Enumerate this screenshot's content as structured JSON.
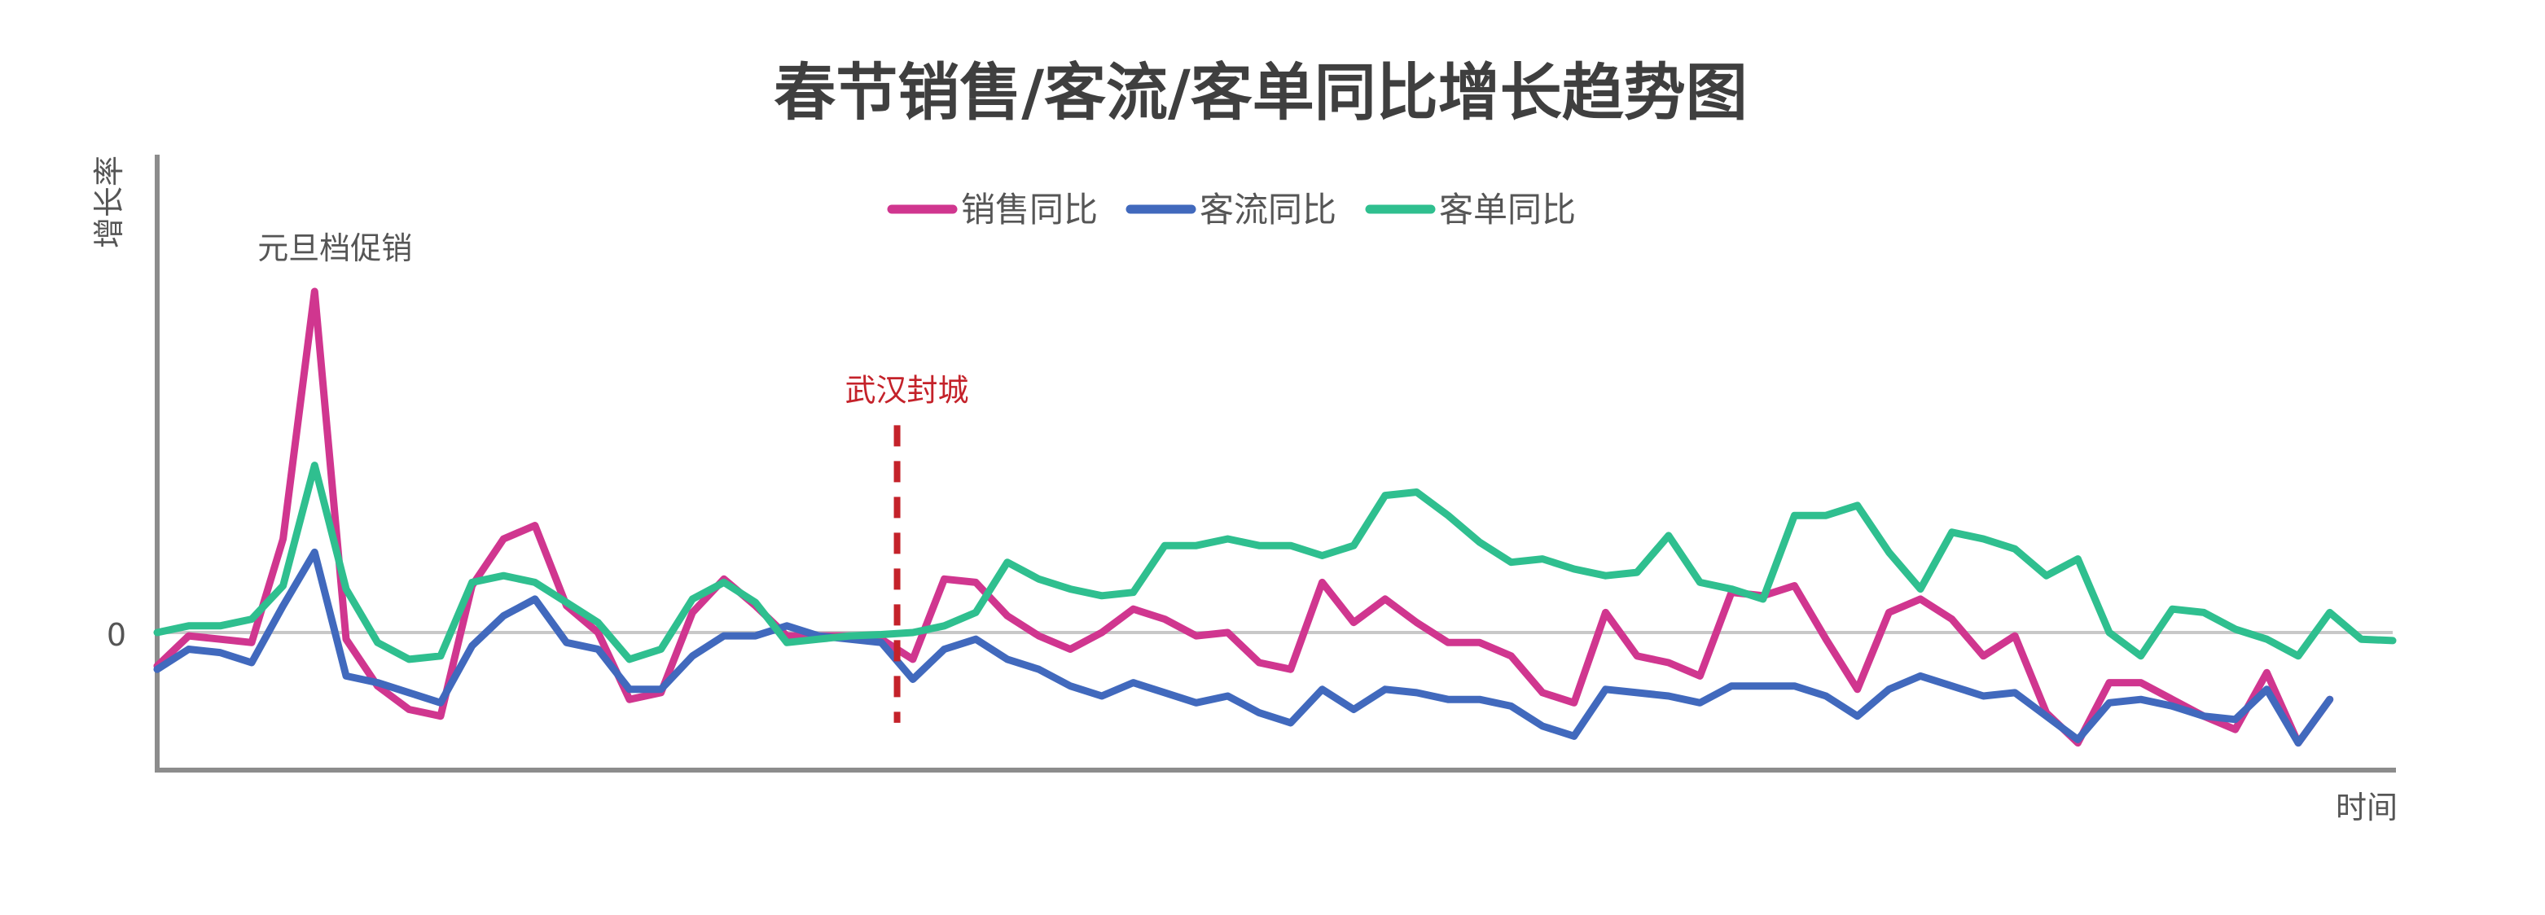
{
  "chart_data": {
    "type": "line",
    "title": "春节销售/客流/客单同比增长趋势图",
    "xlabel": "时间",
    "ylabel": "增长率",
    "y_tick_labels": [
      "0"
    ],
    "ylim": [
      -0.2,
      0.7
    ],
    "x_count": 72,
    "legend": {
      "placement": "top-center"
    },
    "grid": false,
    "zero_line": true,
    "series": [
      {
        "name": "销售同比",
        "color": "#d0368f",
        "values": [
          -0.05,
          -0.005,
          -0.01,
          -0.015,
          0.14,
          0.51,
          -0.01,
          -0.08,
          -0.115,
          -0.125,
          0.07,
          0.14,
          0.16,
          0.04,
          -0.0,
          -0.1,
          -0.09,
          0.03,
          0.08,
          0.04,
          -0.005,
          -0.005,
          -0.005,
          -0.01,
          -0.04,
          0.08,
          0.075,
          0.025,
          -0.005,
          -0.025,
          0.0,
          0.035,
          0.02,
          -0.005,
          0.0,
          -0.045,
          -0.055,
          0.075,
          0.015,
          0.05,
          0.015,
          -0.015,
          -0.015,
          -0.035,
          -0.09,
          -0.105,
          0.03,
          -0.035,
          -0.045,
          -0.065,
          0.06,
          0.055,
          0.07,
          -0.01,
          -0.085,
          0.03,
          0.05,
          0.02,
          -0.035,
          -0.005,
          -0.12,
          -0.165,
          -0.075,
          -0.075,
          -0.1,
          -0.125,
          -0.145,
          -0.06,
          -0.165,
          -0.1
        ],
        "lw": 9
      },
      {
        "name": "客流同比",
        "color": "#4169bd",
        "values": [
          -0.055,
          -0.025,
          -0.03,
          -0.045,
          0.04,
          0.12,
          -0.065,
          -0.075,
          -0.09,
          -0.105,
          -0.02,
          0.025,
          0.05,
          -0.015,
          -0.025,
          -0.085,
          -0.085,
          -0.035,
          -0.005,
          -0.005,
          0.01,
          -0.005,
          -0.01,
          -0.015,
          -0.07,
          -0.025,
          -0.01,
          -0.04,
          -0.055,
          -0.08,
          -0.095,
          -0.075,
          -0.09,
          -0.105,
          -0.095,
          -0.12,
          -0.135,
          -0.085,
          -0.115,
          -0.085,
          -0.09,
          -0.1,
          -0.1,
          -0.11,
          -0.14,
          -0.155,
          -0.085,
          -0.09,
          -0.095,
          -0.105,
          -0.08,
          -0.08,
          -0.08,
          -0.095,
          -0.125,
          -0.085,
          -0.065,
          -0.08,
          -0.095,
          -0.09,
          -0.125,
          -0.16,
          -0.105,
          -0.1,
          -0.11,
          -0.125,
          -0.13,
          -0.085,
          -0.165,
          -0.1
        ],
        "lw": 9
      },
      {
        "name": "客单同比",
        "color": "#2fbf8f",
        "values": [
          0.0,
          0.01,
          0.01,
          0.02,
          0.07,
          0.25,
          0.065,
          -0.015,
          -0.04,
          -0.035,
          0.075,
          0.085,
          0.075,
          0.045,
          0.015,
          -0.04,
          -0.025,
          0.05,
          0.075,
          0.045,
          -0.015,
          -0.01,
          -0.005,
          -0.003,
          0.0,
          0.01,
          0.03,
          0.105,
          0.08,
          0.065,
          0.055,
          0.06,
          0.13,
          0.13,
          0.14,
          0.13,
          0.13,
          0.115,
          0.13,
          0.205,
          0.21,
          0.175,
          0.135,
          0.105,
          0.11,
          0.095,
          0.085,
          0.09,
          0.145,
          0.075,
          0.065,
          0.05,
          0.175,
          0.175,
          0.19,
          0.12,
          0.065,
          0.15,
          0.14,
          0.125,
          0.085,
          0.11,
          0.0,
          -0.035,
          0.035,
          0.03,
          0.005,
          -0.01,
          -0.035,
          0.03,
          -0.01,
          -0.012
        ],
        "lw": 9
      }
    ],
    "annotations": [
      {
        "text": "元旦档促销",
        "x_index": 5,
        "y": 0.51
      },
      {
        "text": "武汉封城",
        "x_index": 23.5,
        "y_from": -0.135,
        "y_to": 0.31,
        "color": "#c4222a",
        "dashed": true
      }
    ]
  }
}
